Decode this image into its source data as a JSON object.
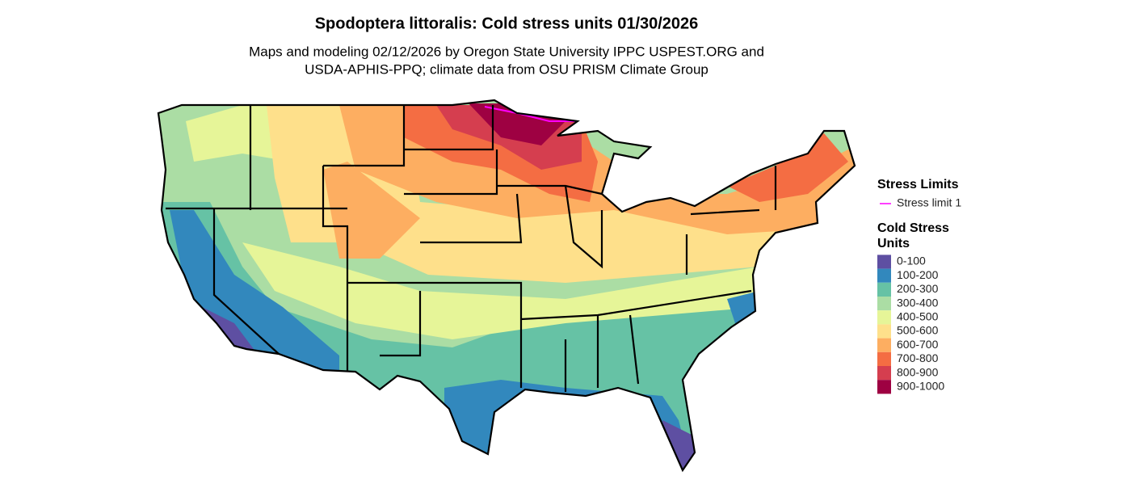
{
  "header": {
    "title": "Spodoptera littoralis: Cold stress units 01/30/2026",
    "subtitle": [
      "Maps and modeling 02/12/2026 by Oregon State University IPPC USPEST.ORG and",
      "USDA-APHIS-PPQ; climate data from OSU PRISM Climate Group"
    ]
  },
  "legend": {
    "stress_limits": {
      "title": "Stress Limits",
      "items": [
        {
          "label": "Stress limit 1",
          "color": "#ff00ff"
        }
      ]
    },
    "cold_stress": {
      "title": [
        "Cold Stress",
        "Units"
      ],
      "items": [
        {
          "label": "0-100",
          "color": "#5e4fa2"
        },
        {
          "label": "100-200",
          "color": "#3288bd"
        },
        {
          "label": "200-300",
          "color": "#66c2a5"
        },
        {
          "label": "300-400",
          "color": "#abdda4"
        },
        {
          "label": "400-500",
          "color": "#e6f598"
        },
        {
          "label": "500-600",
          "color": "#fee08b"
        },
        {
          "label": "600-700",
          "color": "#fdae61"
        },
        {
          "label": "700-800",
          "color": "#f46d43"
        },
        {
          "label": "800-900",
          "color": "#d53e4f"
        },
        {
          "label": "900-1000",
          "color": "#9e0142"
        }
      ]
    }
  }
}
